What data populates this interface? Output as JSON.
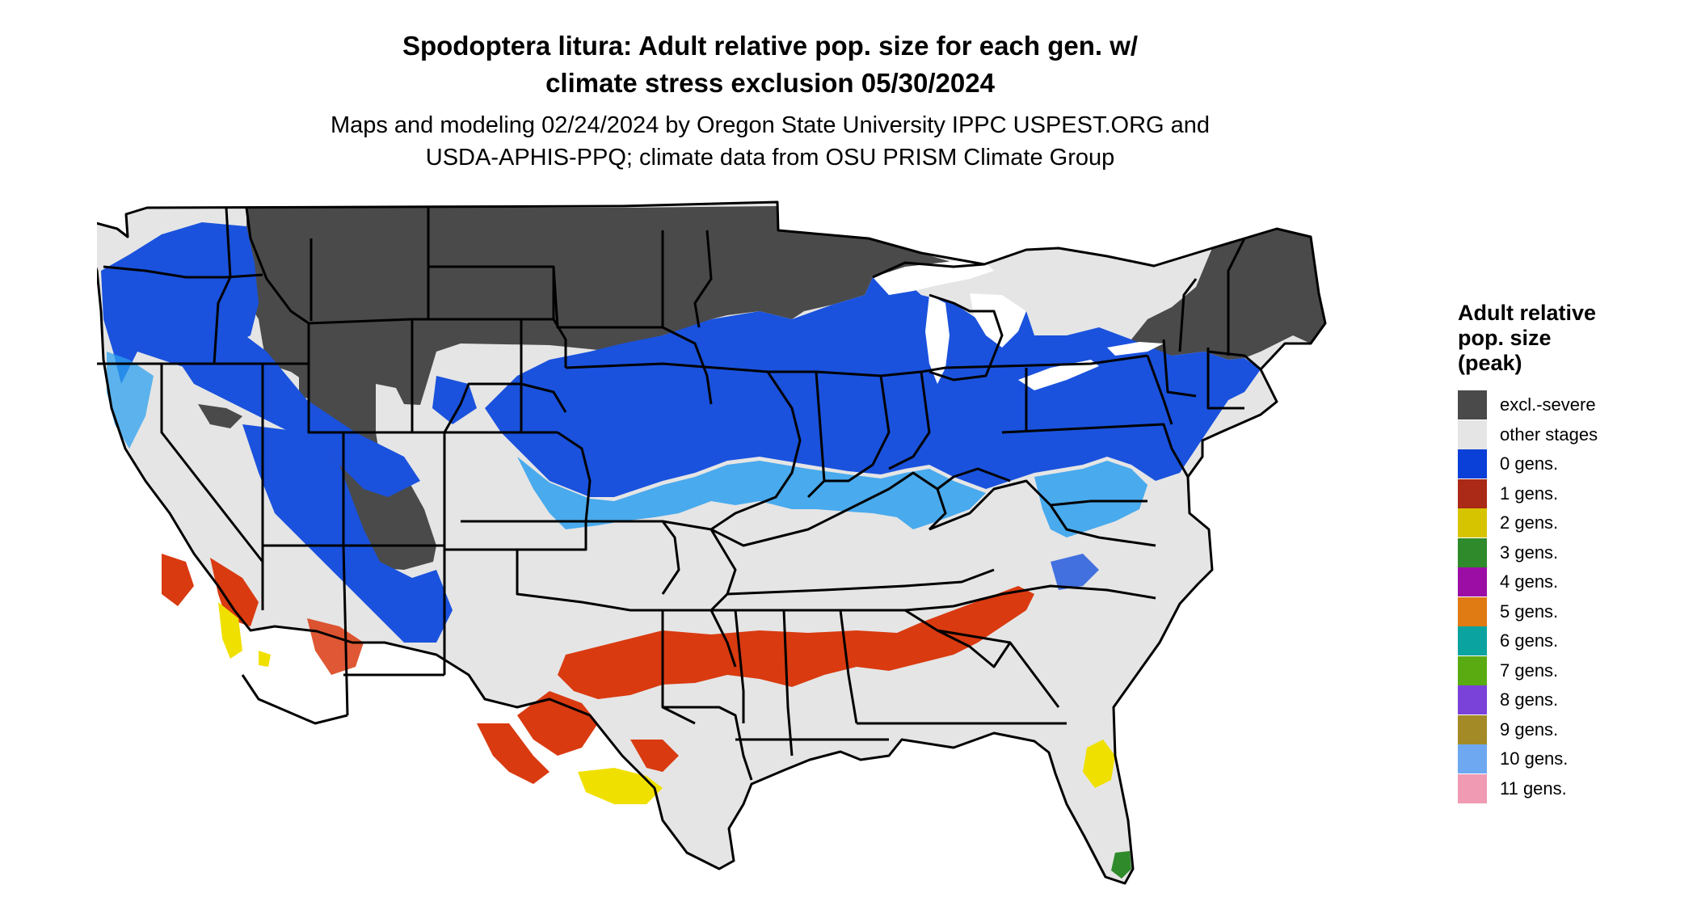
{
  "title_lines": [
    "Spodoptera litura: Adult relative pop. size for each gen. w/",
    "climate stress exclusion 05/30/2024"
  ],
  "subtitle_lines": [
    "Maps and modeling 02/24/2024 by Oregon State University IPPC USPEST.ORG and",
    "USDA-APHIS-PPQ; climate data from OSU PRISM Climate Group"
  ],
  "legend": {
    "title_lines": [
      "Adult relative",
      "pop. size",
      "(peak)"
    ],
    "items": [
      {
        "label": "excl.-severe",
        "color": "#4a4a4a"
      },
      {
        "label": "other stages",
        "color": "#e5e5e5"
      },
      {
        "label": "0 gens.",
        "color": "#0a3fd8"
      },
      {
        "label": "1 gens.",
        "color": "#aa2a17"
      },
      {
        "label": "2 gens.",
        "color": "#d7c400"
      },
      {
        "label": "3 gens.",
        "color": "#2e8a2a"
      },
      {
        "label": "4 gens.",
        "color": "#9c0da6"
      },
      {
        "label": "5 gens.",
        "color": "#e07a12"
      },
      {
        "label": "6 gens.",
        "color": "#0aa3a0"
      },
      {
        "label": "7 gens.",
        "color": "#5aab12"
      },
      {
        "label": "8 gens.",
        "color": "#7a42d8"
      },
      {
        "label": "9 gens.",
        "color": "#a38a26"
      },
      {
        "label": "10 gens.",
        "color": "#6ea8f0"
      },
      {
        "label": "11 gens.",
        "color": "#f09ab4"
      }
    ]
  },
  "map_colors": {
    "land": "#e5e5e5",
    "excluded": "#4a4a4a",
    "zero_gens": "#1a52dd",
    "zero_gens_light": "#2ea0ee",
    "one_gen": "#d93a10",
    "two_gens": "#f0e000",
    "three_gens": "#2e8a2a",
    "water": "#ffffff",
    "border": "#000000"
  }
}
